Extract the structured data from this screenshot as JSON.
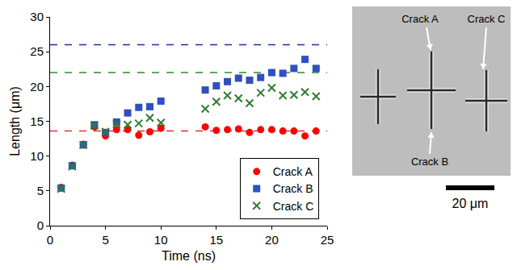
{
  "chart_data": {
    "type": "scatter",
    "x_label": "Time (ns)",
    "y_label": "Length (μm)",
    "xlim": [
      0,
      25
    ],
    "xticks": [
      0,
      5,
      10,
      15,
      20,
      25
    ],
    "ylim": [
      0,
      30
    ],
    "yticks": [
      0,
      5,
      10,
      15,
      20,
      25,
      30
    ],
    "grid": false,
    "legend": "lower right",
    "series": [
      {
        "name": "Crack A",
        "color": "#ff0000",
        "marker": "circle",
        "x": [
          1,
          2,
          3,
          4,
          5,
          6,
          7,
          8,
          9,
          10,
          14,
          15,
          16,
          17,
          18,
          19,
          20,
          21,
          22,
          23,
          24
        ],
        "values": [
          5.5,
          8.7,
          11.7,
          14.2,
          12.9,
          13.8,
          13.8,
          13.0,
          13.5,
          14.0,
          14.2,
          13.7,
          13.8,
          13.9,
          13.4,
          13.8,
          13.8,
          13.6,
          13.6,
          12.9,
          13.6
        ]
      },
      {
        "name": "Crack B",
        "color": "#3050c0",
        "marker": "square",
        "x": [
          1,
          2,
          3,
          4,
          5,
          6,
          7,
          8,
          9,
          10,
          14,
          15,
          16,
          17,
          18,
          19,
          20,
          21,
          22,
          23,
          24
        ],
        "values": [
          5.4,
          8.6,
          11.6,
          14.5,
          13.4,
          14.9,
          16.2,
          17.0,
          17.1,
          17.9,
          19.5,
          20.1,
          20.7,
          21.2,
          20.9,
          21.3,
          22.0,
          21.9,
          22.6,
          23.9,
          22.6
        ]
      },
      {
        "name": "Crack C",
        "color": "#2e7d32",
        "marker": "x",
        "x": [
          1,
          2,
          3,
          4,
          5,
          6,
          7,
          8,
          9,
          10,
          14,
          15,
          16,
          17,
          18,
          19,
          20,
          21,
          22,
          23,
          24
        ],
        "values": [
          5.3,
          8.5,
          11.6,
          14.4,
          13.5,
          14.6,
          14.5,
          14.7,
          15.5,
          14.8,
          16.8,
          17.8,
          18.7,
          18.3,
          17.6,
          19.1,
          19.8,
          18.7,
          18.8,
          19.2,
          18.6
        ]
      }
    ],
    "reference_lines": [
      {
        "value": 13.6,
        "color": "#e03030",
        "line_style": "dash"
      },
      {
        "value": 26,
        "color": "#1f2f9f",
        "line_style": "dash"
      },
      {
        "value": 22,
        "color": "#2e8b2e",
        "line_style": "dash"
      }
    ]
  },
  "image_panel": {
    "labels": [
      "Crack A",
      "Crack B",
      "Crack C"
    ],
    "scale_bar": "20 μm"
  }
}
